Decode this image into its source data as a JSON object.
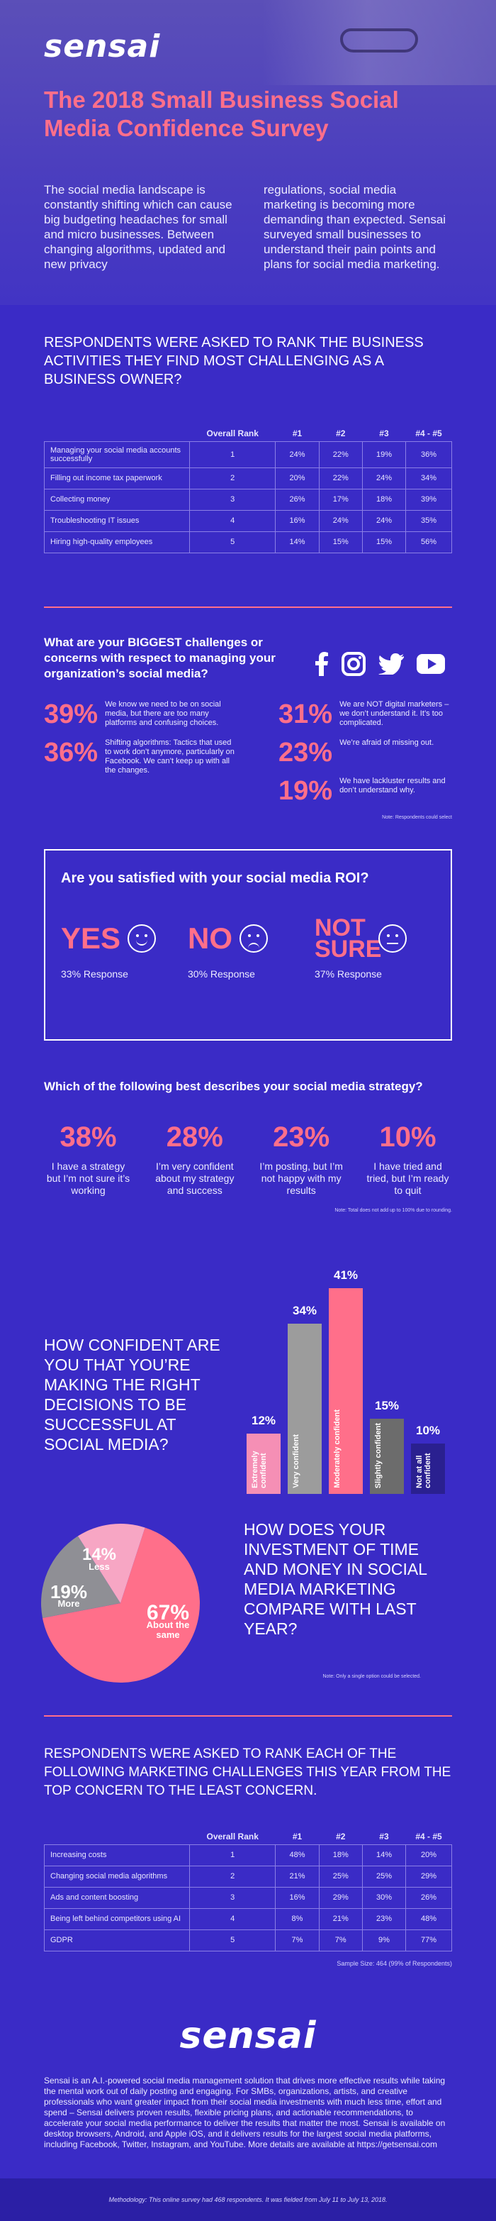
{
  "brand": {
    "logo": "sensai",
    "pink": "#ff6f8a",
    "bg": "#3a2bc6"
  },
  "hero": {
    "title": "The 2018 Small Business Social Media Confidence Survey",
    "intro_left": "The social media landscape is constantly shifting which can cause big budgeting headaches for small and micro businesses. Between changing algorithms, updated and new privacy",
    "intro_right": "regulations, social media marketing is becoming more demanding than expected. Sensai surveyed small businesses to understand their pain points and plans for social media marketing."
  },
  "activities": {
    "title": "Respondents were asked to rank the business activities they find most challenging as a business owner?",
    "columns": [
      "",
      "Overall Rank",
      "#1",
      "#2",
      "#3",
      "#4 - #5"
    ],
    "rows": [
      [
        "Managing your social media accounts successfully",
        "1",
        "24%",
        "22%",
        "19%",
        "36%"
      ],
      [
        "Filling out income tax paperwork",
        "2",
        "20%",
        "22%",
        "24%",
        "34%"
      ],
      [
        "Collecting money",
        "3",
        "26%",
        "17%",
        "18%",
        "39%"
      ],
      [
        "Troubleshooting IT issues",
        "4",
        "16%",
        "24%",
        "24%",
        "35%"
      ],
      [
        "Hiring high-quality employees",
        "5",
        "14%",
        "15%",
        "15%",
        "56%"
      ]
    ]
  },
  "challenges": {
    "question": "What are your BIGGEST challenges or concerns with respect to managing your organization’s social media?",
    "social_icons": [
      "facebook-icon",
      "instagram-icon",
      "twitter-icon",
      "youtube-icon"
    ],
    "left": [
      {
        "pct": "39%",
        "desc": "We know we need to be on social media, but there are too many platforms and confusing choices."
      },
      {
        "pct": "36%",
        "desc": "Shifting algorithms: Tactics that used to work don’t anymore, particularly on Facebook. We can’t keep up with all the changes."
      }
    ],
    "right": [
      {
        "pct": "31%",
        "desc": "We are NOT digital marketers – we don’t understand it. It’s too complicated."
      },
      {
        "pct": "23%",
        "desc": "We’re afraid of missing out."
      },
      {
        "pct": "19%",
        "desc": "We have lackluster results and don’t understand why."
      }
    ],
    "note": "Note: Respondents could select"
  },
  "roi": {
    "question": "Are you satisfied with your social media ROI?",
    "answers": [
      {
        "word": "YES",
        "response": "33% Response",
        "face": "happy"
      },
      {
        "word": "NO",
        "response": "30% Response",
        "face": "sad"
      },
      {
        "word": "NOT SURE",
        "response": "37% Response",
        "face": "neutral"
      }
    ]
  },
  "strategy": {
    "question": "Which of the following best describes your social media strategy?",
    "items": [
      {
        "pct": "38%",
        "desc": "I have a strategy but I’m not sure it’s working"
      },
      {
        "pct": "28%",
        "desc": "I’m very confident about my strategy and success"
      },
      {
        "pct": "23%",
        "desc": "I’m posting, but I’m not happy with my results"
      },
      {
        "pct": "10%",
        "desc": "I have tried and tried, but I’m ready to quit"
      }
    ],
    "note": "Note: Total does not add up to 100% due to rounding."
  },
  "confidence": {
    "question": "How confident are you that you’re making the right decisions to be successful at social media?",
    "bars": [
      {
        "label": "Extremely confident",
        "pct": "12%",
        "value": 12,
        "color": "#f58fb5"
      },
      {
        "label": "Very confident",
        "pct": "34%",
        "value": 34,
        "color": "#9c9c9c"
      },
      {
        "label": "Moderately confident",
        "pct": "41%",
        "value": 41,
        "color": "#ff6f8a"
      },
      {
        "label": "Slightly confident",
        "pct": "15%",
        "value": 15,
        "color": "#6c6c6c"
      },
      {
        "label": "Not at all confident",
        "pct": "10%",
        "value": 10,
        "color": "#2a2090"
      }
    ]
  },
  "investment": {
    "question": "How does your investment of time and money in social media marketing compare with last year?",
    "slices": [
      {
        "pct": "67%",
        "label": "About the same",
        "value": 67,
        "color": "#ff6f8a"
      },
      {
        "pct": "19%",
        "label": "More",
        "value": 19,
        "color": "#8f8f95"
      },
      {
        "pct": "14%",
        "label": "Less",
        "value": 14,
        "color": "#f7a6c4"
      }
    ],
    "note": "Note: Only a single option could be selected."
  },
  "marketing": {
    "title": "Respondents were asked to rank each of the following marketing challenges this year from the top concern to the least concern.",
    "columns": [
      "",
      "Overall Rank",
      "#1",
      "#2",
      "#3",
      "#4 - #5"
    ],
    "rows": [
      [
        "Increasing costs",
        "1",
        "48%",
        "18%",
        "14%",
        "20%"
      ],
      [
        "Changing social media algorithms",
        "2",
        "21%",
        "25%",
        "25%",
        "29%"
      ],
      [
        "Ads and content boosting",
        "3",
        "16%",
        "29%",
        "30%",
        "26%"
      ],
      [
        "Being left behind competitors using AI",
        "4",
        "8%",
        "21%",
        "23%",
        "48%"
      ],
      [
        "GDPR",
        "5",
        "7%",
        "7%",
        "9%",
        "77%"
      ]
    ],
    "sample": "Sample Size: 464 (99% of Respondents)"
  },
  "footer": {
    "logo": "sensai",
    "about": "Sensai is an A.I.-powered social media management solution that drives more effective results while taking the mental work out of daily posting and engaging. For SMBs, organizations, artists, and creative professionals who want greater impact from their social media investments with much less time, effort and spend – Sensai delivers proven results, flexible pricing plans, and actionable recommendations, to accelerate your social media performance to deliver the results that matter the most. Sensai is available on desktop browsers, Android, and Apple iOS, and it delivers results for the largest social media platforms, including Facebook, Twitter, Instagram, and YouTube. More details are available at https://getsensai.com",
    "methodology": "Methodology: This online survey had 468 respondents. It was fielded from July 11 to July 13, 2018."
  }
}
